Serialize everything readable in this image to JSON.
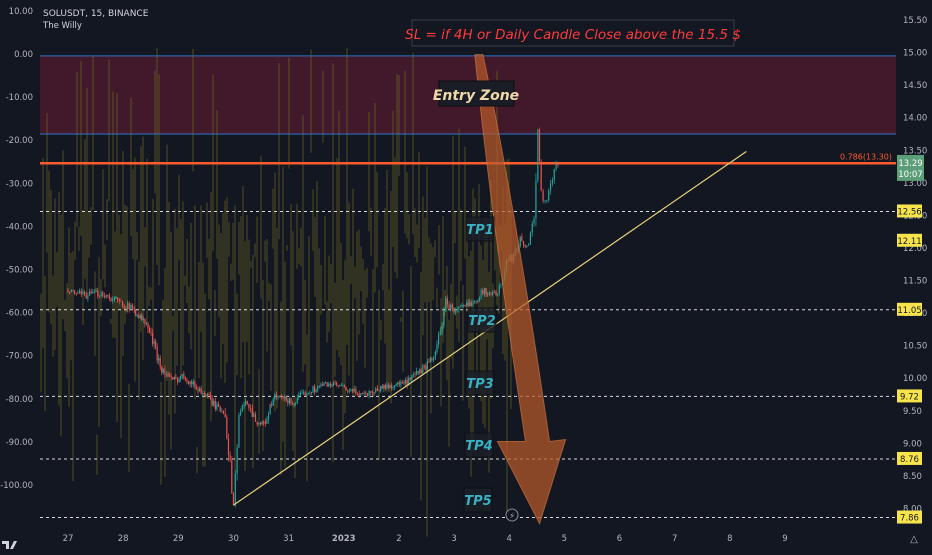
{
  "header": {
    "symbol": "SOLUSDT, 15, BINANCE",
    "author": "The Willy"
  },
  "colors": {
    "background": "#131722",
    "entry_zone_fill": "#4a1a2c",
    "sl_text": "#ff3b3b",
    "resistance_line": "#ff5b2e",
    "blue_line": "#2f73c8",
    "trendline": "#e8d27a",
    "tp_label_text": "#3ab0c4",
    "tp_price_bg": "#f7e44a",
    "oscillator": "#6b6521",
    "candle_up": "#26a69a",
    "candle_down": "#ef5350",
    "arrow": "#b85a2a",
    "current_price_bg": "#5c9e78"
  },
  "annotations": {
    "stop_loss": "SL = if 4H or Daily Candle Close above the 15.5 $",
    "entry_zone": "Entry Zone",
    "fib_level": "0.786(13.30)"
  },
  "current_price": {
    "value": "13.29",
    "countdown": "10:07"
  },
  "chart_data": {
    "type": "candlestick",
    "symbol": "SOLUSDT",
    "timeframe": "15",
    "exchange": "BINANCE",
    "x_labels": [
      "27",
      "28",
      "29",
      "30",
      "31",
      "2023",
      "2",
      "3",
      "4",
      "5",
      "6",
      "7",
      "8",
      "9"
    ],
    "right_axis": {
      "ticks": [
        "15.50",
        "15.00",
        "14.50",
        "14.00",
        "13.50",
        "13.00",
        "12.50",
        "12.00",
        "11.50",
        "11.00",
        "10.50",
        "10.00",
        "9.50",
        "9.00",
        "8.50",
        "8.00"
      ],
      "range": [
        7.8,
        15.8
      ]
    },
    "left_axis": {
      "ticks": [
        "10.00",
        "0.00",
        "-10.00",
        "-20.00",
        "-30.00",
        "-40.00",
        "-50.00",
        "-60.00",
        "-70.00",
        "-80.00",
        "-90.00",
        "-100.00"
      ],
      "range": [
        -107.0,
        12.0
      ]
    },
    "entry_zone": {
      "from": 13.75,
      "to": 14.95
    },
    "resistance": 13.3,
    "fib_label": "0.786(13.30)",
    "targets": [
      {
        "label": "TP1",
        "price": 12.56
      },
      {
        "label": "TP2",
        "price": 11.05
      },
      {
        "label": "TP3",
        "price": 9.72
      },
      {
        "label": "TP4",
        "price": 8.76
      },
      {
        "label": "TP5",
        "price": 7.86
      }
    ],
    "extra_price_levels": [
      "12.11"
    ],
    "price_series": [
      [
        0,
        11.33
      ],
      [
        0.3,
        11.27
      ],
      [
        0.6,
        11.31
      ],
      [
        0.9,
        11.18
      ],
      [
        1.2,
        11.05
      ],
      [
        1.45,
        10.78
      ],
      [
        1.7,
        10.14
      ],
      [
        1.9,
        9.96
      ],
      [
        2.1,
        10.04
      ],
      [
        2.3,
        9.88
      ],
      [
        2.5,
        9.74
      ],
      [
        2.7,
        9.55
      ],
      [
        2.85,
        9.48
      ],
      [
        3.0,
        8.05
      ],
      [
        3.1,
        9.45
      ],
      [
        3.25,
        9.65
      ],
      [
        3.4,
        9.35
      ],
      [
        3.55,
        9.28
      ],
      [
        3.75,
        9.72
      ],
      [
        3.9,
        9.68
      ],
      [
        4.1,
        9.62
      ],
      [
        4.3,
        9.78
      ],
      [
        4.5,
        9.85
      ],
      [
        4.7,
        9.92
      ],
      [
        4.9,
        9.88
      ],
      [
        5.1,
        9.8
      ],
      [
        5.4,
        9.76
      ],
      [
        5.7,
        9.86
      ],
      [
        5.95,
        9.9
      ],
      [
        6.15,
        9.93
      ],
      [
        6.35,
        10.08
      ],
      [
        6.6,
        10.27
      ],
      [
        6.75,
        10.7
      ],
      [
        6.85,
        11.18
      ],
      [
        7.0,
        11.03
      ],
      [
        7.2,
        11.1
      ],
      [
        7.4,
        11.22
      ],
      [
        7.55,
        11.35
      ],
      [
        7.7,
        11.28
      ],
      [
        7.85,
        11.4
      ],
      [
        7.95,
        11.8
      ],
      [
        8.05,
        11.85
      ],
      [
        8.2,
        12.13
      ],
      [
        8.32,
        12.0
      ],
      [
        8.45,
        12.45
      ],
      [
        8.52,
        13.85
      ],
      [
        8.58,
        12.85
      ],
      [
        8.65,
        12.7
      ],
      [
        8.75,
        12.95
      ],
      [
        8.85,
        13.3
      ],
      [
        8.92,
        13.25
      ]
    ],
    "trendline": {
      "from": [
        3.0,
        8.05
      ],
      "to": [
        12.3,
        13.48
      ]
    },
    "forecast_arrow": {
      "from": [
        7.45,
        15.0
      ],
      "to": [
        8.55,
        7.86
      ]
    }
  }
}
